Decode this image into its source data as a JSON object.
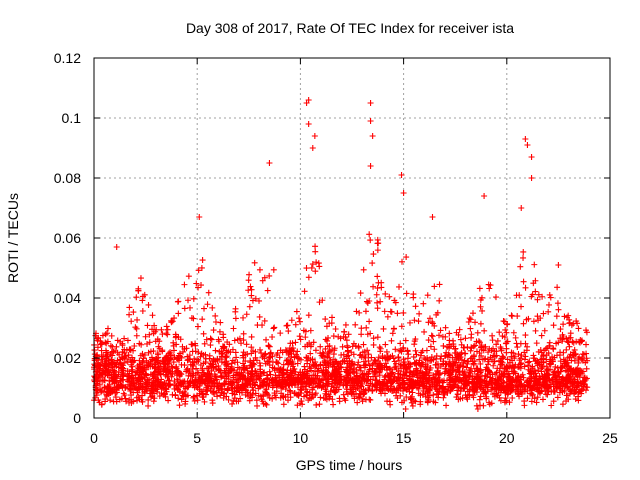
{
  "chart_data": {
    "type": "scatter",
    "title": "Day 308 of 2017, Rate Of TEC Index for receiver ista",
    "xlabel": "GPS time / hours",
    "ylabel": "ROTI / TECUs",
    "xlim": [
      0,
      25
    ],
    "ylim": [
      0,
      0.12
    ],
    "x_ticks": [
      0,
      5,
      10,
      15,
      20,
      25
    ],
    "x_tick_labels": [
      "0",
      "5",
      "10",
      "15",
      "20",
      "25"
    ],
    "y_ticks": [
      0,
      0.02,
      0.04,
      0.06,
      0.08,
      0.1,
      0.12
    ],
    "y_tick_labels": [
      "0",
      "0.02",
      "0.04",
      "0.06",
      "0.08",
      "0.1",
      "0.12"
    ],
    "grid": true,
    "marker": "+",
    "marker_color": "#ff0000",
    "series": [
      {
        "name": "ROTI",
        "x_range": [
          0,
          23.9
        ],
        "typical_y_range": [
          0.005,
          0.03
        ],
        "notable_points": [
          {
            "x": 1.1,
            "y": 0.057
          },
          {
            "x": 5.1,
            "y": 0.067
          },
          {
            "x": 8.5,
            "y": 0.085
          },
          {
            "x": 10.4,
            "y": 0.106
          },
          {
            "x": 10.3,
            "y": 0.105
          },
          {
            "x": 10.4,
            "y": 0.098
          },
          {
            "x": 10.7,
            "y": 0.094
          },
          {
            "x": 10.6,
            "y": 0.09
          },
          {
            "x": 13.4,
            "y": 0.105
          },
          {
            "x": 13.4,
            "y": 0.099
          },
          {
            "x": 13.5,
            "y": 0.094
          },
          {
            "x": 13.4,
            "y": 0.084
          },
          {
            "x": 14.9,
            "y": 0.081
          },
          {
            "x": 15.0,
            "y": 0.075
          },
          {
            "x": 16.4,
            "y": 0.067
          },
          {
            "x": 18.9,
            "y": 0.074
          },
          {
            "x": 20.7,
            "y": 0.07
          },
          {
            "x": 20.9,
            "y": 0.093
          },
          {
            "x": 21.0,
            "y": 0.091
          },
          {
            "x": 21.2,
            "y": 0.087
          },
          {
            "x": 21.2,
            "y": 0.08
          },
          {
            "x": 22.5,
            "y": 0.051
          },
          {
            "x": 15.1,
            "y": 0.003
          },
          {
            "x": 18.6,
            "y": 0.003
          }
        ]
      }
    ]
  }
}
